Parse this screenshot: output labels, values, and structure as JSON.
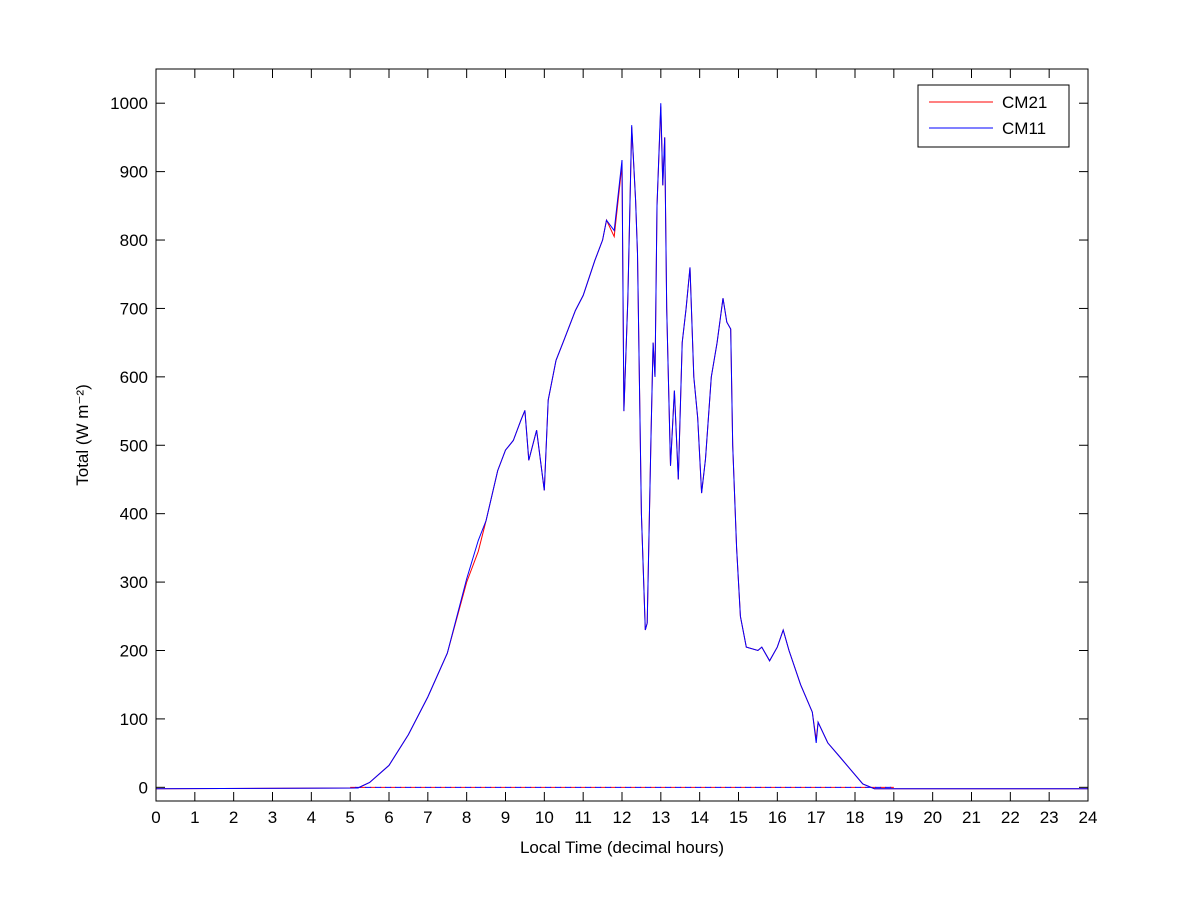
{
  "chart_data": {
    "type": "line",
    "title": "",
    "xlabel": "Local Time (decimal hours)",
    "ylabel": "Total (W m⁻²)",
    "xlim": [
      0,
      24
    ],
    "ylim": [
      -20,
      1050
    ],
    "xticks": [
      0,
      1,
      2,
      3,
      4,
      5,
      6,
      7,
      8,
      9,
      10,
      11,
      12,
      13,
      14,
      15,
      16,
      17,
      18,
      19,
      20,
      21,
      22,
      23,
      24
    ],
    "yticks": [
      0,
      100,
      200,
      300,
      400,
      500,
      600,
      700,
      800,
      900,
      1000
    ],
    "grid": false,
    "legend": "top-right",
    "zero_line": {
      "style": "dashed",
      "value": 0
    },
    "x": [
      0,
      5.2,
      5.5,
      6.0,
      6.5,
      7.0,
      7.5,
      8.0,
      8.3,
      8.5,
      8.8,
      9.0,
      9.2,
      9.4,
      9.5,
      9.6,
      9.8,
      10.0,
      10.1,
      10.3,
      10.5,
      10.8,
      11.0,
      11.3,
      11.5,
      11.6,
      11.8,
      12.0,
      12.05,
      12.15,
      12.25,
      12.35,
      12.4,
      12.5,
      12.6,
      12.65,
      12.75,
      12.8,
      12.85,
      12.9,
      13.0,
      13.05,
      13.1,
      13.15,
      13.25,
      13.35,
      13.45,
      13.55,
      13.65,
      13.75,
      13.85,
      13.95,
      14.05,
      14.15,
      14.3,
      14.45,
      14.6,
      14.7,
      14.8,
      14.85,
      14.95,
      15.05,
      15.2,
      15.5,
      15.6,
      15.8,
      16.0,
      16.15,
      16.3,
      16.6,
      16.9,
      17.0,
      17.05,
      17.3,
      17.6,
      17.9,
      18.2,
      18.5,
      24
    ],
    "series": [
      {
        "name": "CM21",
        "color": "#ff0000",
        "values": [
          -2,
          -1,
          7,
          32,
          77,
          132,
          196,
          300,
          345,
          390,
          463,
          493,
          507,
          537,
          551,
          478,
          522,
          434,
          566,
          624,
          653,
          697,
          719,
          770,
          800,
          829,
          805,
          910,
          550,
          712,
          965,
          858,
          780,
          400,
          230,
          240,
          520,
          650,
          600,
          850,
          995,
          880,
          950,
          700,
          470,
          580,
          450,
          650,
          700,
          760,
          600,
          540,
          430,
          480,
          600,
          650,
          715,
          680,
          670,
          500,
          350,
          250,
          205,
          200,
          205,
          185,
          205,
          230,
          200,
          150,
          110,
          70,
          95,
          65,
          45,
          25,
          5,
          -2,
          -2
        ]
      },
      {
        "name": "CM11",
        "color": "#0000ff",
        "values": [
          -2,
          -1,
          7,
          32,
          77,
          132,
          196,
          305,
          361,
          390,
          463,
          493,
          507,
          537,
          551,
          478,
          522,
          434,
          566,
          624,
          653,
          697,
          719,
          770,
          800,
          829,
          814,
          917,
          550,
          712,
          968,
          858,
          780,
          400,
          230,
          240,
          520,
          650,
          600,
          850,
          1000,
          880,
          950,
          700,
          470,
          580,
          450,
          650,
          700,
          760,
          600,
          540,
          430,
          480,
          600,
          650,
          715,
          680,
          670,
          500,
          350,
          250,
          205,
          200,
          205,
          185,
          205,
          230,
          200,
          150,
          110,
          65,
          95,
          65,
          45,
          25,
          5,
          -2,
          -2
        ]
      }
    ]
  }
}
